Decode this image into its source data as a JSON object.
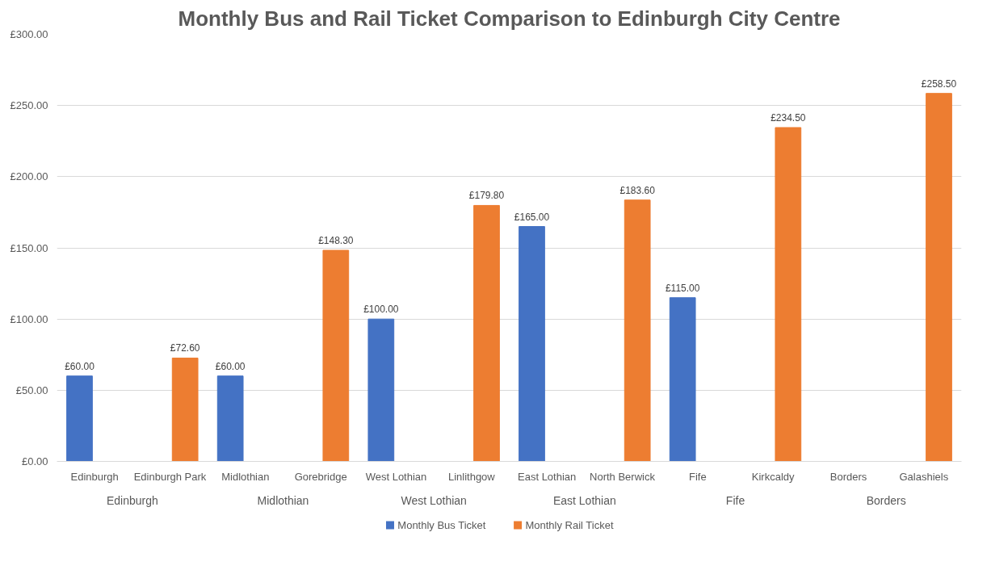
{
  "chart_data": {
    "type": "bar",
    "title": "Monthly Bus and Rail Ticket Comparison to Edinburgh City Centre",
    "categories": [
      "Edinburgh",
      "Edinburgh Park",
      "Midlothian",
      "Gorebridge",
      "West Lothian",
      "Linlithgow",
      "East Lothian",
      "North Berwick",
      "Fife",
      "Kirkcaldy",
      "Borders",
      "Galashiels"
    ],
    "annotations": [
      "Edinburgh",
      "Midlothian",
      "West Lothian",
      "East Lothian",
      "Fife",
      "Borders"
    ],
    "series": [
      {
        "name": "Monthly Bus Ticket",
        "color": "#4472c4",
        "values": [
          60,
          null,
          60,
          null,
          100,
          null,
          165,
          null,
          115,
          null,
          null,
          null
        ],
        "value_labels": [
          "£60.00",
          null,
          "£60.00",
          null,
          "£100.00",
          null,
          "£165.00",
          null,
          "£115.00",
          null,
          null,
          null
        ]
      },
      {
        "name": "Monthly Rail Ticket",
        "color": "#ed7d31",
        "values": [
          null,
          72.6,
          null,
          148.3,
          null,
          179.8,
          null,
          183.6,
          null,
          234.5,
          null,
          258.5
        ],
        "value_labels": [
          null,
          "£72.60",
          null,
          "£148.30",
          null,
          "£179.80",
          null,
          "£183.60",
          null,
          "£234.50",
          null,
          "£258.50"
        ]
      }
    ],
    "ylim": [
      0,
      300
    ],
    "yticks": [
      {
        "value": 0,
        "label": "£0.00"
      },
      {
        "value": 50,
        "label": "£50.00"
      },
      {
        "value": 100,
        "label": "£100.00"
      },
      {
        "value": 150,
        "label": "£150.00"
      },
      {
        "value": 200,
        "label": "£200.00"
      },
      {
        "value": 250,
        "label": "£250.00"
      },
      {
        "value": 300,
        "label": "£300.00"
      }
    ],
    "grid": "y",
    "legend": "bottom"
  }
}
